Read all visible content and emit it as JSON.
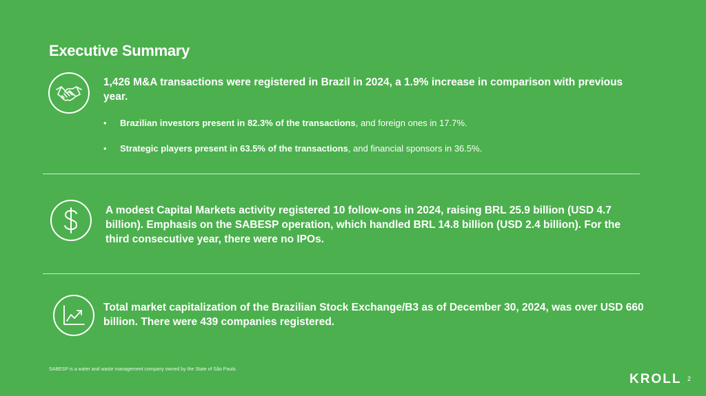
{
  "page": {
    "title": "Executive Summary",
    "footnote": "SABESP is a water and waste management company owned by the State of São Paulo.",
    "logo": "KROLL",
    "page_number": "2"
  },
  "sections": {
    "ma": {
      "icon": "handshake-icon",
      "headline": "1,426 M&A transactions were registered in Brazil in 2024, a 1.9% increase in comparison with previous year.",
      "bullets": [
        {
          "bold": "Brazilian investors present in 82.3% of the transactions",
          "rest": ", and foreign ones in 17.7%."
        },
        {
          "bold": "Strategic players present in 63.5% of the transactions",
          "rest": ", and financial sponsors in 36.5%."
        }
      ]
    },
    "capital_markets": {
      "icon": "dollar-icon",
      "headline": "A modest Capital Markets activity registered 10 follow-ons in 2024, raising BRL 25.9 billion (USD 4.7 billion). Emphasis on the SABESP operation, which handled BRL 14.8 billion (USD 2.4 billion). For the third consecutive year, there were no IPOs."
    },
    "market_cap": {
      "icon": "growth-chart-icon",
      "headline": "Total market capitalization of the Brazilian Stock Exchange/B3 as of December 30, 2024, was over USD 660 billion. There were 439 companies registered."
    }
  },
  "colors": {
    "background": "#4bb04d",
    "text": "#ffffff"
  }
}
